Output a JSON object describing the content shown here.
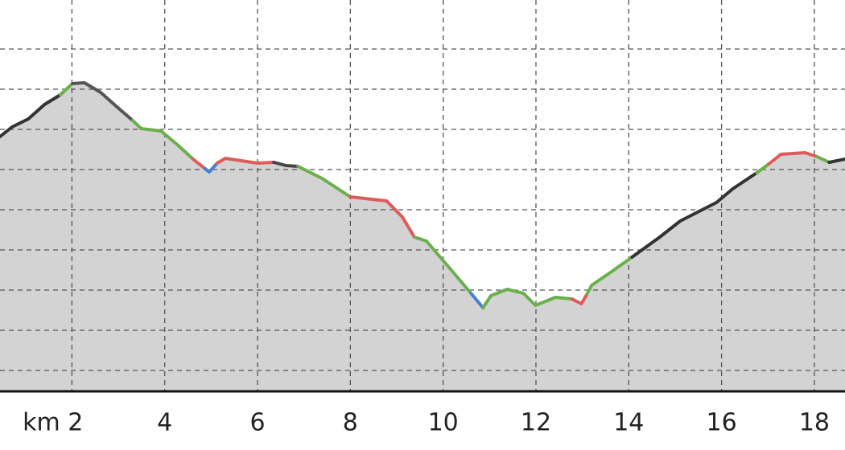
{
  "chart_data": {
    "type": "area-line",
    "xlim": [
      0.45,
      18.66
    ],
    "ylim": [
      0.48,
      10.22
    ],
    "xticks": [
      {
        "value": 2,
        "label": "km 2"
      },
      4,
      6,
      8,
      10,
      12,
      14,
      16,
      18
    ],
    "yticks": [
      1,
      2,
      3,
      4,
      5,
      6,
      7,
      8,
      9
    ],
    "grid": true,
    "fill_color": "#d3d3d3",
    "series": [
      {
        "color": "#333333",
        "x": [
          0.45,
          0.71,
          1.06,
          1.41,
          1.75
        ],
        "values": [
          6.82,
          7.06,
          7.26,
          7.62,
          7.86
        ]
      },
      {
        "color": "#6ab04c",
        "x": [
          1.75,
          2.01
        ],
        "values": [
          7.86,
          8.14
        ]
      },
      {
        "color": "#555555",
        "x": [
          2.01,
          2.27,
          2.62,
          2.97,
          3.31
        ],
        "values": [
          8.14,
          8.16,
          7.92,
          7.56,
          7.22
        ]
      },
      {
        "color": "#6ab04c",
        "x": [
          3.31,
          3.49,
          3.92,
          4.27,
          4.61
        ],
        "values": [
          7.22,
          7.02,
          6.96,
          6.62,
          6.26
        ]
      },
      {
        "color": "#e05a5a",
        "x": [
          4.61,
          4.87
        ],
        "values": [
          6.26,
          6.02
        ]
      },
      {
        "color": "#4a7fd0",
        "x": [
          4.87,
          4.96,
          5.13
        ],
        "values": [
          6.02,
          5.94,
          6.16
        ]
      },
      {
        "color": "#e05a5a",
        "x": [
          5.13,
          5.31,
          5.65,
          6.0,
          6.35
        ],
        "values": [
          6.16,
          6.28,
          6.22,
          6.16,
          6.18
        ]
      },
      {
        "color": "#444444",
        "x": [
          6.35,
          6.61,
          6.87
        ],
        "values": [
          6.18,
          6.1,
          6.08
        ]
      },
      {
        "color": "#6ab04c",
        "x": [
          6.87,
          7.39,
          8.0
        ],
        "values": [
          6.08,
          5.78,
          5.32
        ]
      },
      {
        "color": "#e05a5a",
        "x": [
          8.0,
          8.78,
          9.12,
          9.38
        ],
        "values": [
          5.32,
          5.22,
          4.82,
          4.32
        ]
      },
      {
        "color": "#6ab04c",
        "x": [
          9.38,
          9.64,
          10.16,
          10.6
        ],
        "values": [
          4.32,
          4.22,
          3.52,
          2.92
        ]
      },
      {
        "color": "#4a7fd0",
        "x": [
          10.6,
          10.86
        ],
        "values": [
          2.92,
          2.56
        ]
      },
      {
        "color": "#6ab04c",
        "x": [
          10.86,
          11.03,
          11.38,
          11.73,
          11.99,
          12.42,
          12.77
        ],
        "values": [
          2.56,
          2.86,
          3.02,
          2.92,
          2.62,
          2.82,
          2.78
        ]
      },
      {
        "color": "#e05a5a",
        "x": [
          12.77,
          12.98,
          13.1
        ],
        "values": [
          2.78,
          2.66,
          2.9
        ]
      },
      {
        "color": "#6ab04c",
        "x": [
          13.1,
          13.2,
          13.63,
          14.07
        ],
        "values": [
          2.9,
          3.12,
          3.46,
          3.82
        ]
      },
      {
        "color": "#333333",
        "x": [
          14.07,
          14.67,
          15.11,
          15.89,
          16.24,
          16.76
        ],
        "values": [
          3.82,
          4.32,
          4.72,
          5.18,
          5.52,
          5.92
        ]
      },
      {
        "color": "#6ab04c",
        "x": [
          16.76,
          17.02
        ],
        "values": [
          5.92,
          6.14
        ]
      },
      {
        "color": "#e05a5a",
        "x": [
          17.02,
          17.28,
          17.8,
          18.06
        ],
        "values": [
          6.14,
          6.38,
          6.42,
          6.32
        ]
      },
      {
        "color": "#6ab04c",
        "x": [
          18.06,
          18.32
        ],
        "values": [
          6.32,
          6.18
        ]
      },
      {
        "color": "#333333",
        "x": [
          18.32,
          18.66
        ],
        "values": [
          6.18,
          6.26
        ]
      }
    ]
  }
}
